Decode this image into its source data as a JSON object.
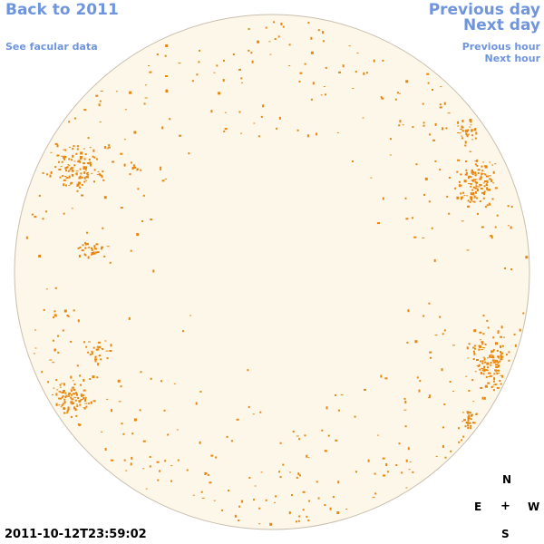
{
  "nav": {
    "back_label": "Back to 2011",
    "facular_label": "See facular data",
    "previous_day_label": "Previous day",
    "next_day_label": "Next day",
    "previous_hour_label": "Previous hour",
    "next_hour_label": "Next hour"
  },
  "timestamp": "2011-10-12T23:59:02",
  "compass": {
    "north": "N",
    "east": "E",
    "center": "+",
    "west": "W",
    "south": "S"
  },
  "colors": {
    "link": "#6f95df",
    "disk_fill": "#fdf7ea",
    "disk_outline": "#c9bfae",
    "activity": "#e8860e"
  }
}
